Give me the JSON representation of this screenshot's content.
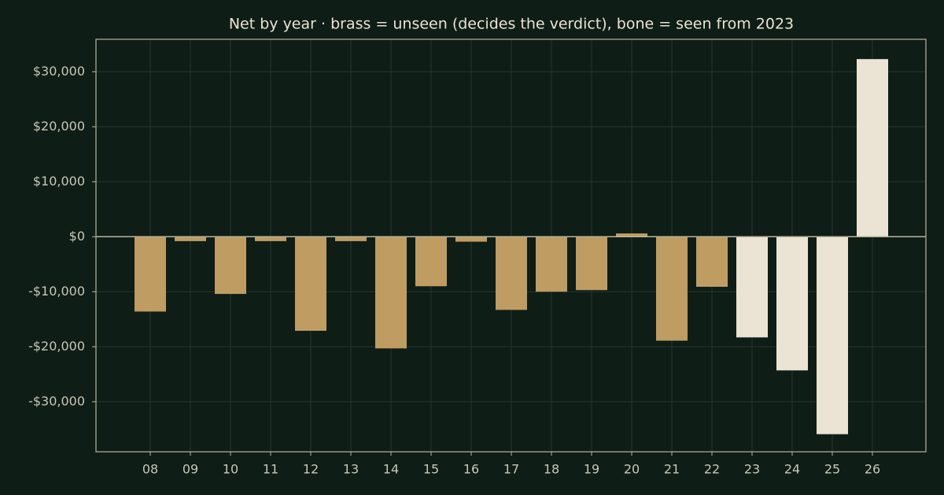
{
  "chart_data": {
    "type": "bar",
    "title": "Net by year  ·  brass = unseen (decides the verdict), bone = seen from 2023",
    "categories": [
      "08",
      "09",
      "10",
      "11",
      "12",
      "13",
      "14",
      "15",
      "16",
      "17",
      "18",
      "19",
      "20",
      "21",
      "22",
      "23",
      "24",
      "25",
      "26"
    ],
    "values": [
      -13600,
      -800,
      -10400,
      -800,
      -17100,
      -800,
      -20300,
      -9000,
      -900,
      -13300,
      -10000,
      -9700,
      600,
      -18900,
      -9100,
      -18300,
      -24300,
      -35900,
      32300
    ],
    "colors": [
      "#bf9c62",
      "#bf9c62",
      "#bf9c62",
      "#bf9c62",
      "#bf9c62",
      "#bf9c62",
      "#bf9c62",
      "#bf9c62",
      "#bf9c62",
      "#bf9c62",
      "#bf9c62",
      "#bf9c62",
      "#bf9c62",
      "#bf9c62",
      "#bf9c62",
      "#ebe3d3",
      "#ebe3d3",
      "#ebe3d3",
      "#ebe3d3"
    ],
    "ylim": [
      -39100,
      35900
    ],
    "yticks": [
      {
        "value": -30000,
        "label": "-$30,000"
      },
      {
        "value": -20000,
        "label": "-$20,000"
      },
      {
        "value": -10000,
        "label": "-$10,000"
      },
      {
        "value": 0,
        "label": "$0"
      },
      {
        "value": 10000,
        "label": "$10,000"
      },
      {
        "value": 20000,
        "label": "$20,000"
      },
      {
        "value": 30000,
        "label": "$30,000"
      }
    ],
    "grid": true
  }
}
